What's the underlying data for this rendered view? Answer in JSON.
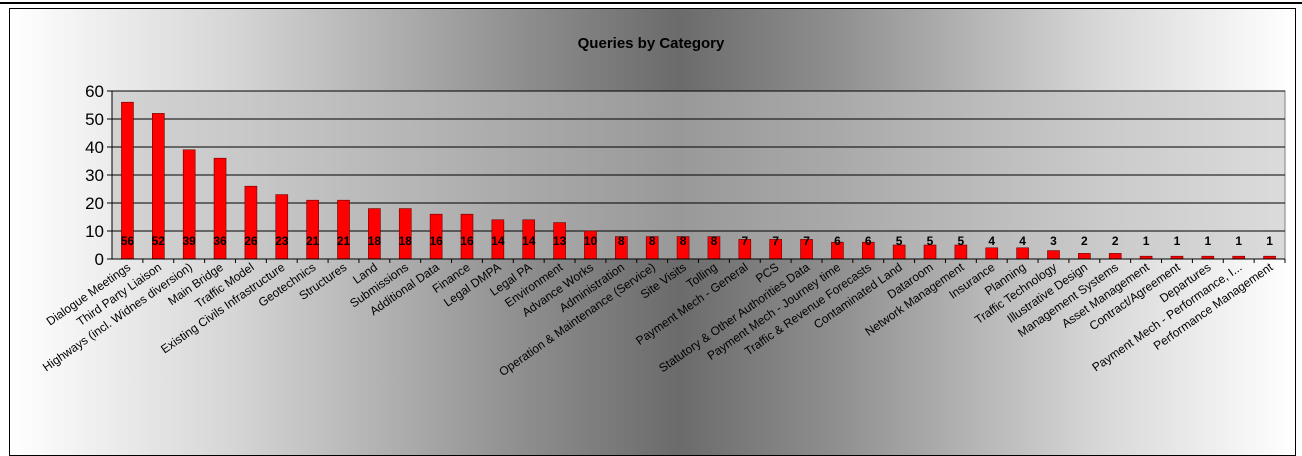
{
  "chart_data": {
    "type": "bar",
    "title": "Queries by Category",
    "xlabel": "",
    "ylabel": "",
    "ylim": [
      0,
      60
    ],
    "yticks": [
      0,
      10,
      20,
      30,
      40,
      50,
      60
    ],
    "grid": true,
    "legend": "none",
    "bar_color": "#ff0000",
    "plot_background": "#c0c0c0",
    "categories": [
      "Dialogue Meetings",
      "Third Party Liaison",
      "Highways (incl. Widnes diversion)",
      "Main Bridge",
      "Traffic Model",
      "Existing Civils Infrastructure",
      "Geotechnics",
      "Structures",
      "Land",
      "Submissions",
      "Additional Data",
      "Finance",
      "Legal DMPA",
      "Legal PA",
      "Environment",
      "Advance Works",
      "Administration",
      "Operation & Maintenance (Service)",
      "Site Visits",
      "Tolling",
      "Payment Mech - General",
      "PCS",
      "Statutory & Other Authorities Data",
      "Payment Mech - Journey time",
      "Traffic & Revenue Forecasts",
      "Contaminated Land",
      "Dataroom",
      "Network Management",
      "Insurance",
      "Planning",
      "Traffic Technology",
      "Illustrative Design",
      "Management Systems",
      "Asset Management",
      "Contract/Agreement",
      "Departures",
      "Payment Mech - Performance, I...",
      "Performance Management"
    ],
    "values": [
      56,
      52,
      39,
      36,
      26,
      23,
      21,
      21,
      18,
      18,
      16,
      16,
      14,
      14,
      13,
      10,
      8,
      8,
      8,
      8,
      7,
      7,
      7,
      6,
      6,
      5,
      5,
      5,
      4,
      4,
      3,
      2,
      2,
      1,
      1,
      1,
      1,
      1
    ]
  }
}
